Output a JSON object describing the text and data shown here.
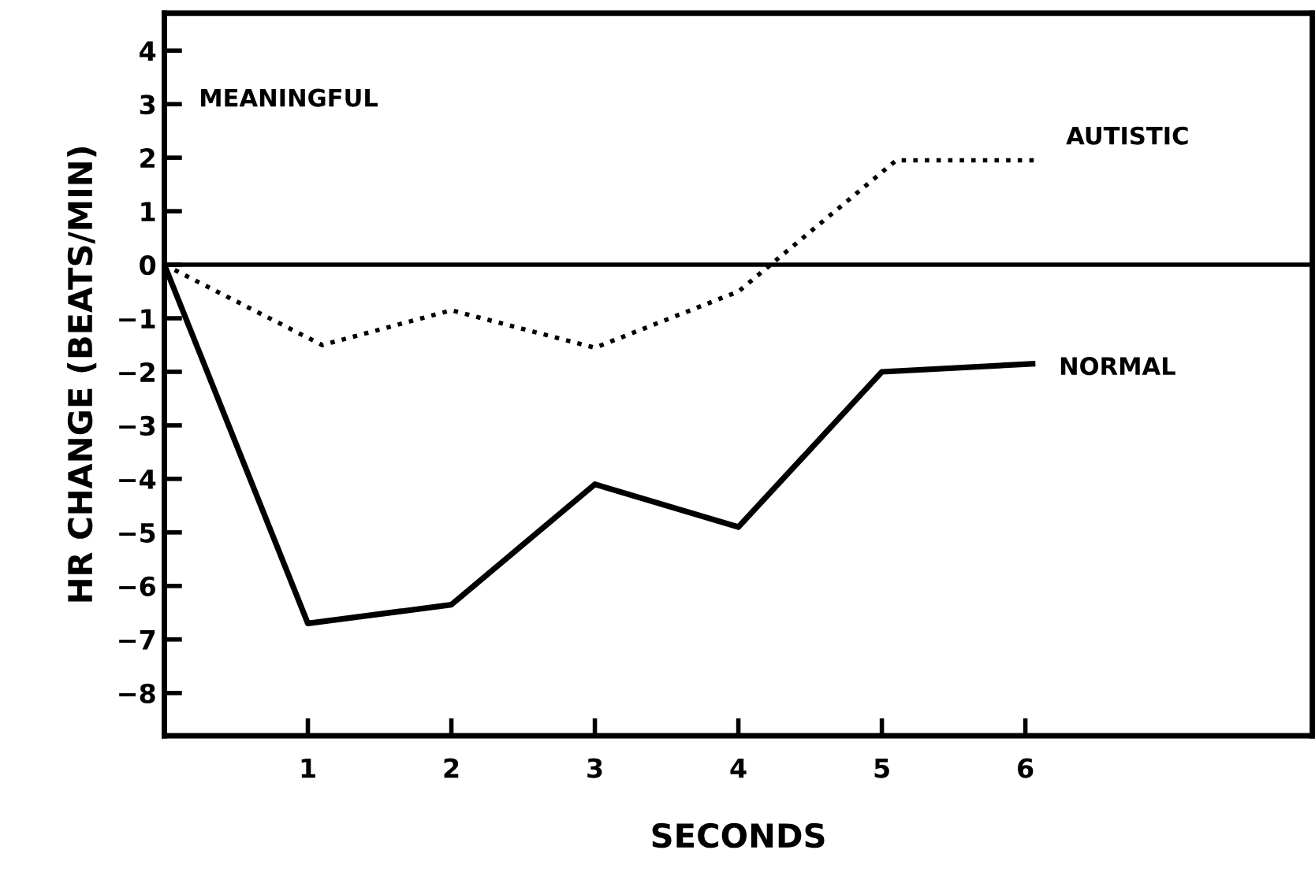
{
  "chart_data": {
    "type": "line",
    "xlabel": "SECONDS",
    "ylabel": "HR CHANGE (BEATS/MIN)",
    "annotations": [
      "MEANINGFUL"
    ],
    "series": [
      {
        "name": "AUTISTIC",
        "color": "#000000",
        "line_style": "dotted",
        "x": [
          0,
          1.1,
          2,
          3,
          4,
          5.1,
          6.1
        ],
        "values": [
          0,
          -1.5,
          -0.85,
          -1.55,
          -0.5,
          1.95,
          1.95
        ]
      },
      {
        "name": "NORMAL",
        "color": "#000000",
        "line_style": "solid",
        "x": [
          0,
          1,
          2,
          3,
          4,
          5,
          6.05
        ],
        "values": [
          0,
          -6.7,
          -6.35,
          -4.1,
          -4.9,
          -2.0,
          -1.85
        ]
      }
    ],
    "ref_lines": [
      {
        "axis": "y",
        "value": 0,
        "color": "#000000",
        "line_style": "solid"
      }
    ],
    "xlim": [
      0,
      8
    ],
    "ylim": [
      -8.8,
      4.7
    ],
    "xticks": [
      1,
      2,
      3,
      4,
      5,
      6
    ],
    "yticks": [
      -8,
      -7,
      -6,
      -5,
      -4,
      -3,
      -2,
      -1,
      0,
      1,
      2,
      3,
      4
    ],
    "grid": false,
    "legend": false,
    "marker": "none"
  }
}
